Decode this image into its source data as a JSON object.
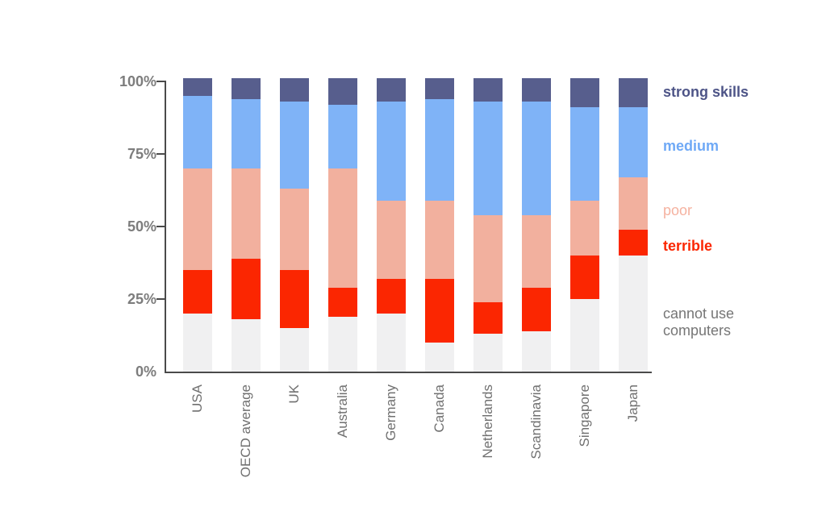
{
  "chart_data": {
    "type": "bar",
    "stacked": true,
    "orientation": "vertical",
    "title": "",
    "xlabel": "",
    "ylabel": "",
    "ylim": [
      0,
      100
    ],
    "yticks": [
      "0%",
      "25%",
      "50%",
      "75%",
      "100%"
    ],
    "grid": false,
    "legend_position": "right",
    "categories": [
      "USA",
      "OECD average",
      "UK",
      "Australia",
      "Germany",
      "Canada",
      "Netherlands",
      "Scandinavia",
      "Singapore",
      "Japan"
    ],
    "series": [
      {
        "name": "cannot use computers",
        "color": "#f0f0f1",
        "values": [
          20,
          18,
          15,
          19,
          20,
          10,
          13,
          14,
          25,
          40
        ]
      },
      {
        "name": "terrible",
        "color": "#fb2601",
        "values": [
          15,
          21,
          20,
          10,
          12,
          22,
          11,
          15,
          15,
          9
        ]
      },
      {
        "name": "poor",
        "color": "#f2b09e",
        "values": [
          35,
          31,
          28,
          41,
          27,
          27,
          30,
          25,
          19,
          18
        ]
      },
      {
        "name": "medium",
        "color": "#7fb3f7",
        "values": [
          25,
          24,
          30,
          22,
          34,
          35,
          39,
          39,
          32,
          24
        ]
      },
      {
        "name": "strong skills",
        "color": "#575e8d",
        "values": [
          5,
          6,
          7,
          8,
          7,
          6,
          7,
          7,
          9,
          9
        ]
      }
    ]
  },
  "axis": {
    "label_color": "#7d7d7d",
    "line_color": "#4a4a4a",
    "y_labels": {
      "l0": "0%",
      "l25": "25%",
      "l50": "50%",
      "l75": "75%",
      "l100": "100%"
    }
  },
  "legend": {
    "strong": {
      "label": "strong skills",
      "color": "#4d5487"
    },
    "medium": {
      "label": "medium",
      "color": "#6fa9f6"
    },
    "poor": {
      "label": "poor",
      "color": "#f5b2a0"
    },
    "terrible": {
      "label": "terrible",
      "color": "#fb2601"
    },
    "cannot": {
      "label": "cannot use computers",
      "color": "#767676"
    }
  }
}
